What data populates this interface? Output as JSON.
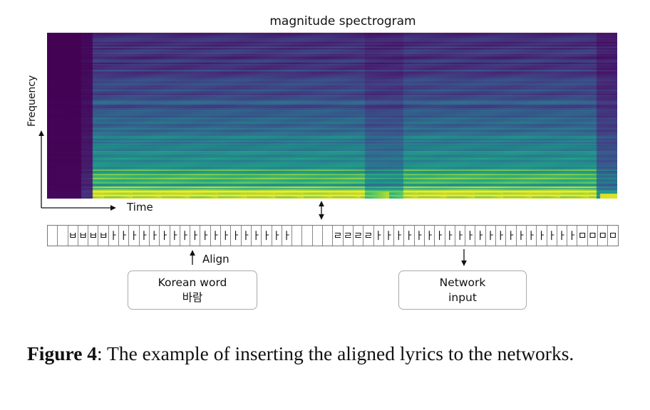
{
  "figure": {
    "spectrogram_title": "magnitude spectrogram",
    "y_axis_label": "Frequency",
    "x_axis_label": "Time",
    "align_label": "Align",
    "korean_word_box": {
      "line1": "Korean word",
      "line2": "바람"
    },
    "network_input_box": {
      "line1": "Network",
      "line2": "input"
    },
    "aligned_lyric_sequence": [
      "",
      "",
      "ㅂ",
      "ㅂ",
      "ㅂ",
      "ㅂ",
      "ㅏ",
      "ㅏ",
      "ㅏ",
      "ㅏ",
      "ㅏ",
      "ㅏ",
      "ㅏ",
      "ㅏ",
      "ㅏ",
      "ㅏ",
      "ㅏ",
      "ㅏ",
      "ㅏ",
      "ㅏ",
      "ㅏ",
      "ㅏ",
      "ㅏ",
      "ㅏ",
      "",
      "",
      "",
      "",
      "ㄹ",
      "ㄹ",
      "ㄹ",
      "ㄹ",
      "ㅏ",
      "ㅏ",
      "ㅏ",
      "ㅏ",
      "ㅏ",
      "ㅏ",
      "ㅏ",
      "ㅏ",
      "ㅏ",
      "ㅏ",
      "ㅏ",
      "ㅏ",
      "ㅏ",
      "ㅏ",
      "ㅏ",
      "ㅏ",
      "ㅏ",
      "ㅏ",
      "ㅏ",
      "ㅏ",
      "ㅁ",
      "ㅁ",
      "ㅁ",
      "ㅁ"
    ],
    "colormap": [
      "#440154",
      "#46327e",
      "#365c8d",
      "#277f8e",
      "#1fa187",
      "#4ac16d",
      "#a0da39",
      "#fde725"
    ]
  },
  "caption": {
    "label": "Figure 4",
    "text": ": The example of inserting the aligned lyrics to the networks."
  }
}
